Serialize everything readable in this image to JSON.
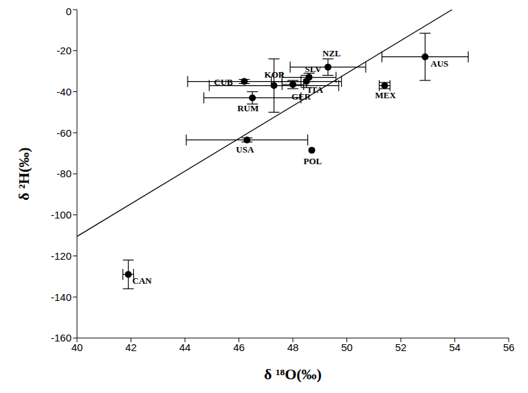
{
  "chart_data": {
    "type": "scatter",
    "x_label": "δ ¹⁸O(‰)",
    "y_label": "δ ²H(‰)",
    "xlim": [
      40,
      56
    ],
    "xticks": [
      40,
      42,
      44,
      46,
      48,
      50,
      52,
      54,
      56
    ],
    "ylim": [
      -160,
      0
    ],
    "yticks": [
      -160,
      -140,
      -120,
      -100,
      -80,
      -60,
      -40,
      -20,
      0
    ],
    "grid": false,
    "color": "#000000",
    "marker": "circle",
    "points": {
      "labels": [
        "CAN",
        "USA",
        "POL",
        "CUB",
        "RUM",
        "KOR",
        "GER",
        "ITA",
        "SLV",
        "NZL",
        "MEX",
        "AUS"
      ],
      "x": [
        41.9,
        46.3,
        48.7,
        46.2,
        46.5,
        47.3,
        48.0,
        48.5,
        48.6,
        49.3,
        51.4,
        52.9
      ],
      "y": [
        -129,
        -63.5,
        -68.5,
        -35,
        -43,
        -37,
        -36.5,
        -35,
        -33,
        -28,
        -37,
        -23
      ],
      "x_error": [
        0.2,
        2.25,
        null,
        2.1,
        1.8,
        2.4,
        0.4,
        1.3,
        1.0,
        1.4,
        0.2,
        1.6
      ],
      "y_error": [
        7,
        1,
        null,
        1,
        3,
        13,
        2,
        3,
        2,
        4,
        1.5,
        11.5
      ]
    },
    "line": {
      "x": [
        40,
        53.9
      ],
      "y": [
        -110.5,
        0
      ],
      "color": "#000000",
      "line_style": "solid"
    }
  }
}
